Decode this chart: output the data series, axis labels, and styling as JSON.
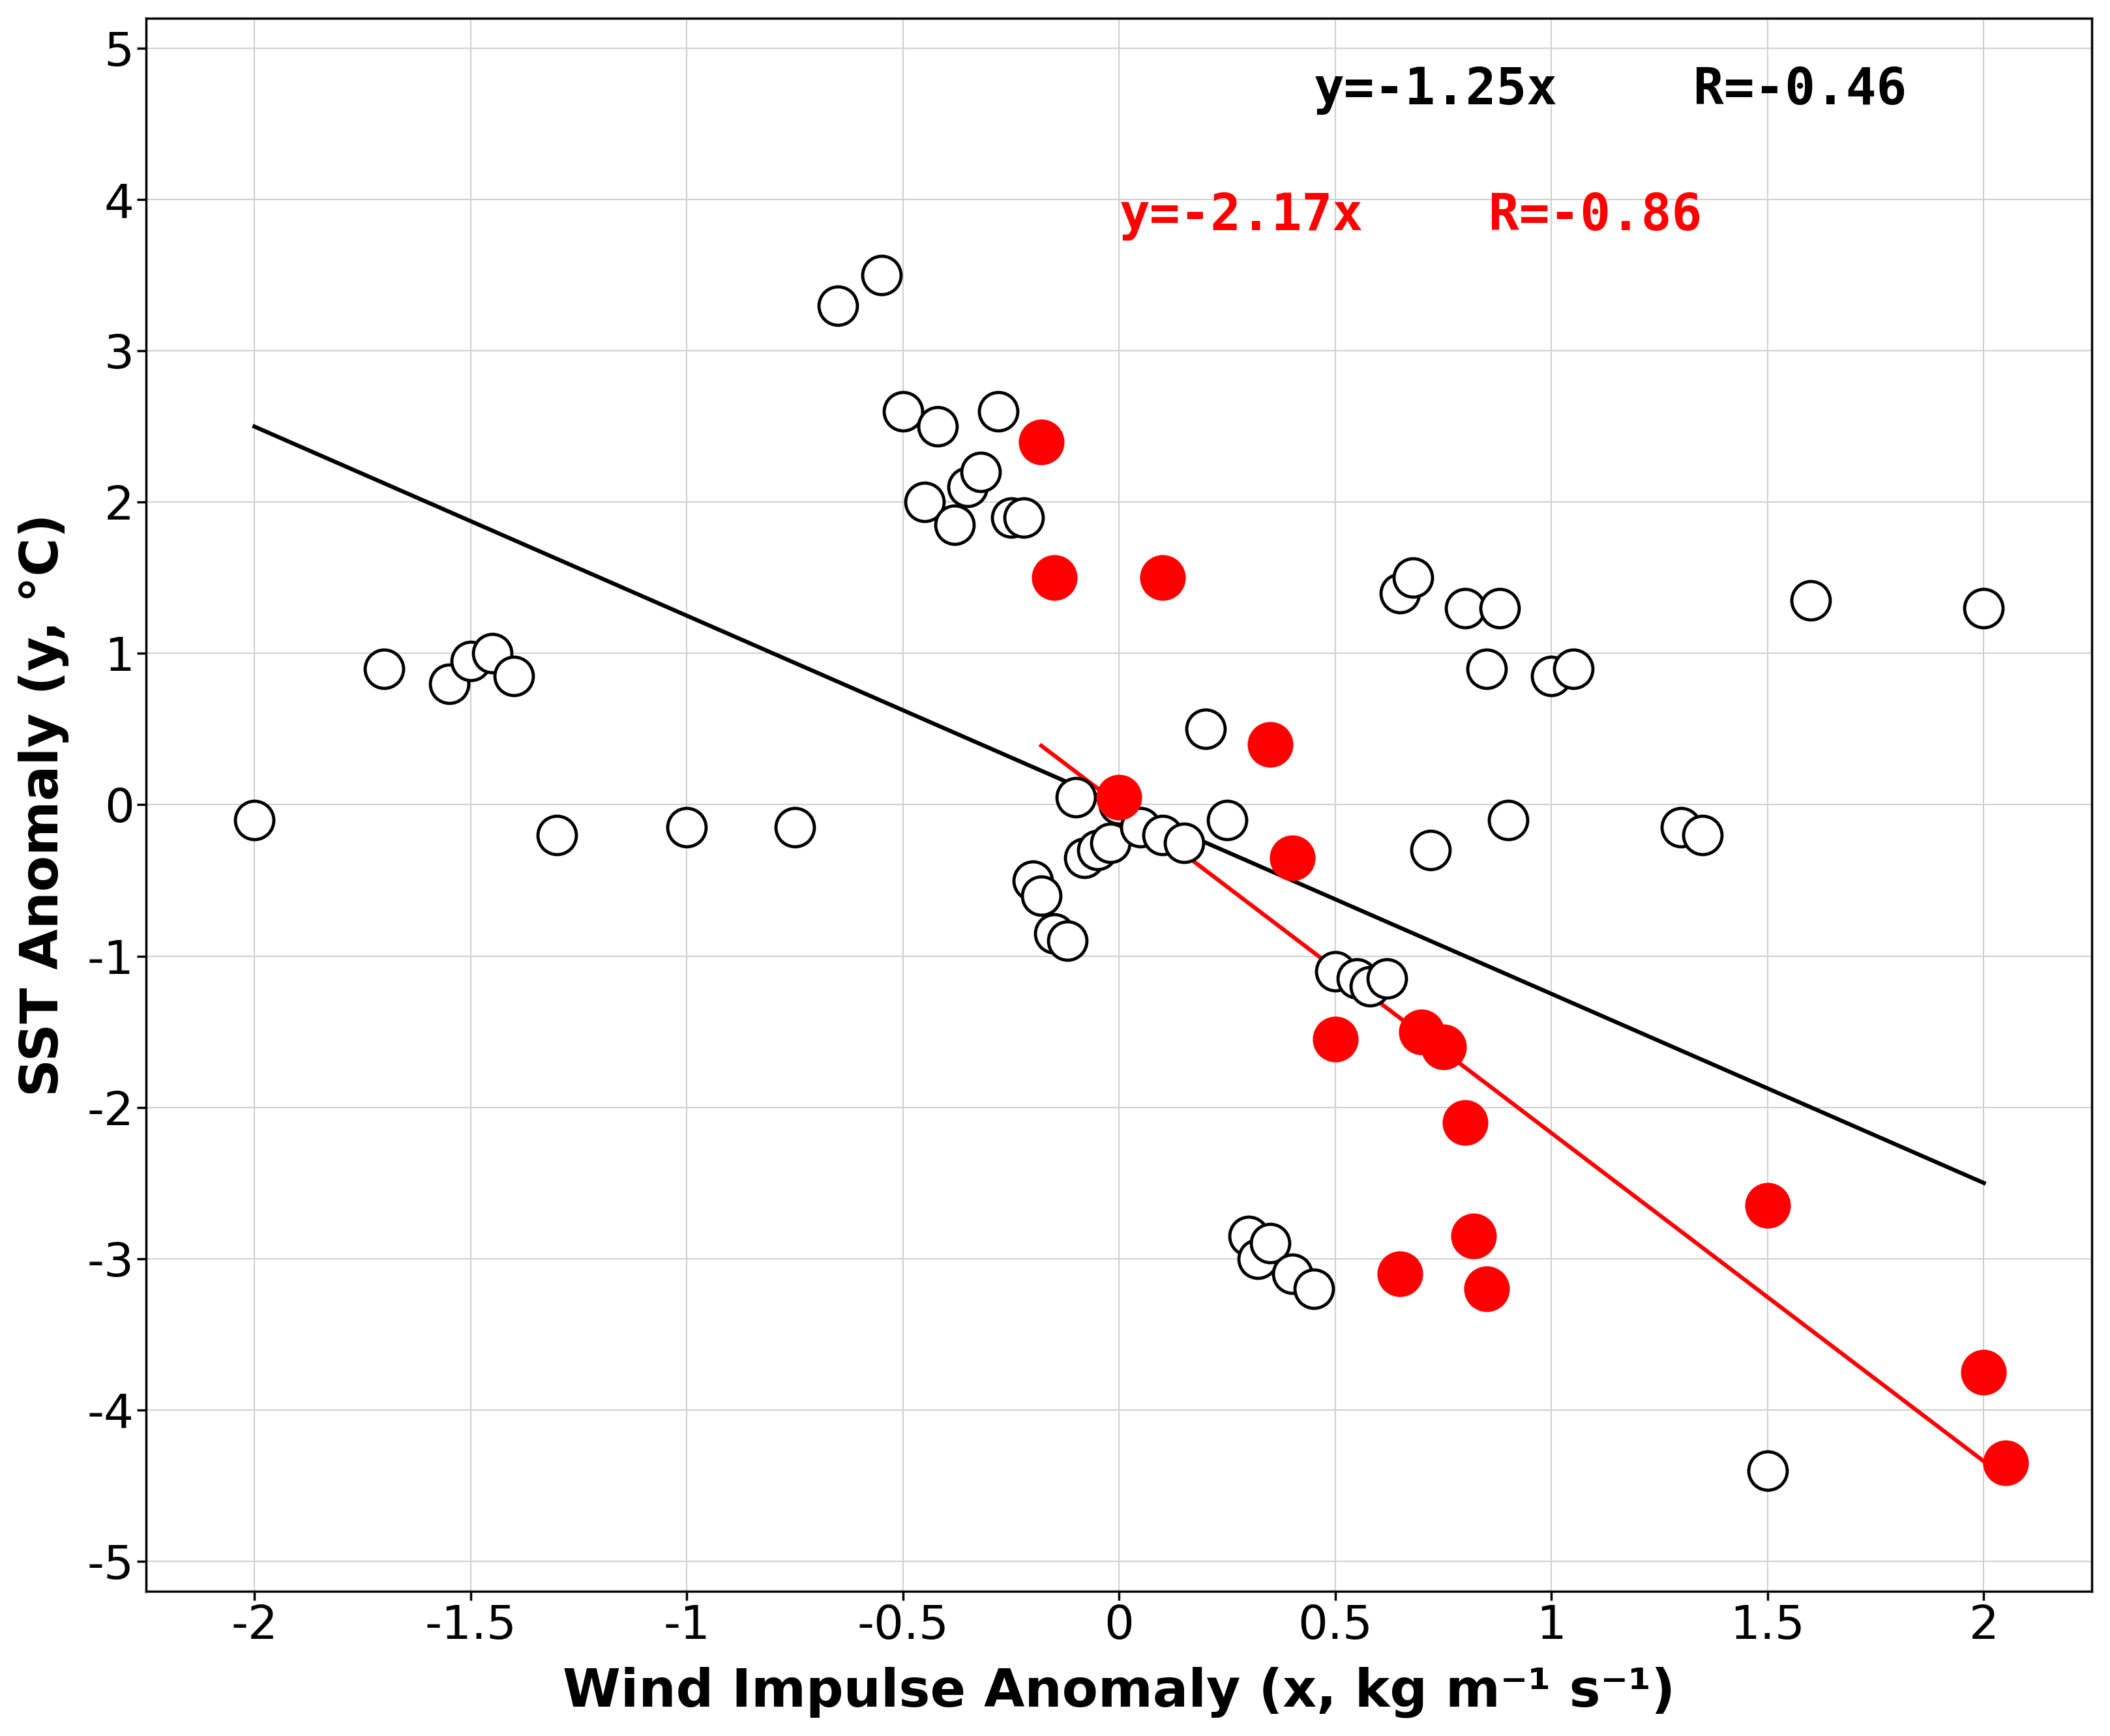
{
  "open_circles_x": [
    -2.0,
    -1.7,
    -1.55,
    -1.5,
    -1.45,
    -1.4,
    -1.3,
    -1.0,
    -0.75,
    -0.65,
    -0.55,
    -0.5,
    -0.45,
    -0.42,
    -0.38,
    -0.35,
    -0.32,
    -0.28,
    -0.25,
    -0.22,
    -0.2,
    -0.18,
    -0.15,
    -0.12,
    -0.1,
    -0.08,
    -0.05,
    -0.02,
    0.0,
    0.05,
    0.1,
    0.15,
    0.2,
    0.25,
    0.3,
    0.32,
    0.35,
    0.4,
    0.45,
    0.5,
    0.55,
    0.58,
    0.62,
    0.65,
    0.68,
    0.72,
    0.8,
    0.85,
    0.88,
    0.9,
    1.0,
    1.05,
    1.3,
    1.35,
    1.5,
    1.6,
    2.0
  ],
  "open_circles_y": [
    -0.1,
    0.9,
    0.8,
    0.95,
    1.0,
    0.85,
    -0.2,
    -0.15,
    -0.15,
    3.3,
    3.5,
    2.6,
    2.0,
    2.5,
    1.85,
    2.1,
    2.2,
    2.6,
    1.9,
    1.9,
    -0.5,
    -0.6,
    -0.85,
    -0.9,
    0.05,
    -0.35,
    -0.3,
    -0.25,
    0.0,
    -0.15,
    -0.2,
    -0.25,
    0.5,
    -0.1,
    -2.85,
    -3.0,
    -2.9,
    -3.1,
    -3.2,
    -1.1,
    -1.15,
    -1.2,
    -1.15,
    1.4,
    1.5,
    -0.3,
    1.3,
    0.9,
    1.3,
    -0.1,
    0.85,
    0.9,
    -0.15,
    -0.2,
    -4.4,
    1.35,
    1.3
  ],
  "red_circles_x": [
    -0.18,
    -0.15,
    0.0,
    0.1,
    0.35,
    0.4,
    0.5,
    0.65,
    0.7,
    0.75,
    0.8,
    0.82,
    0.85,
    1.5,
    2.0,
    2.05
  ],
  "red_circles_y": [
    2.4,
    1.5,
    0.05,
    1.5,
    0.4,
    -0.35,
    -1.55,
    -3.1,
    -1.5,
    -1.6,
    -2.1,
    -2.85,
    -3.2,
    -2.65,
    -3.75,
    -4.35
  ],
  "black_slope": -1.25,
  "red_slope": -2.17,
  "black_line_xlim": [
    -2.0,
    2.0
  ],
  "red_line_xlim": [
    -0.18,
    2.05
  ],
  "xlim": [
    -2.25,
    2.25
  ],
  "ylim": [
    -5.2,
    5.2
  ],
  "xlabel": "Wind Impulse Anomaly (x, kg m⁻¹ s⁻¹)",
  "ylabel": "SST Anomaly (y, °C)",
  "xticks": [
    -2.0,
    -1.5,
    -1.0,
    -0.5,
    0.0,
    0.5,
    1.0,
    1.5,
    2.0
  ],
  "yticks": [
    -5,
    -4,
    -3,
    -2,
    -1,
    0,
    1,
    2,
    3,
    4,
    5
  ],
  "equation_black": "y=-1.25x",
  "r_black": "R=-0.46",
  "equation_red": "y=-2.17x",
  "r_red": "R=-0.86",
  "background_color": "#ffffff",
  "grid_color": "#d0d0d0",
  "open_marker_size": 1800,
  "filled_marker_size": 2400,
  "open_lw": 3.5,
  "line_lw": 4.5,
  "label_fontsize": 58,
  "tick_fontsize": 52,
  "annot_fontsize": 56
}
